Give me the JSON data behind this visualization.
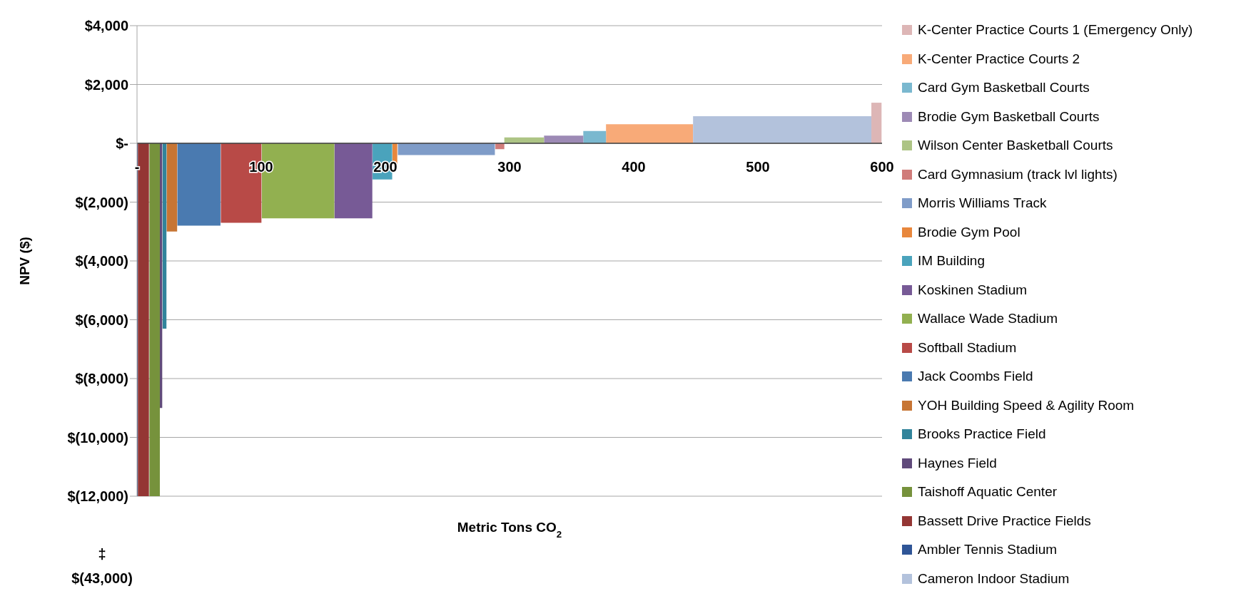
{
  "chart_data": {
    "type": "area",
    "xlabel": "Metric Tons CO$_{2}$",
    "ylabel": "NPV ($)",
    "xlim": [
      0,
      600
    ],
    "ylim": [
      -12000,
      4000
    ],
    "xticks": [
      {
        "value": 0,
        "label": "-"
      },
      100,
      200,
      300,
      400,
      500,
      600
    ],
    "yticks": [
      {
        "value": 4000,
        "label": "$4,000"
      },
      {
        "value": 2000,
        "label": "$2,000"
      },
      {
        "value": 0,
        "label": "$-"
      },
      {
        "value": -2000,
        "label": "$(2,000)"
      },
      {
        "value": -4000,
        "label": "$(4,000)"
      },
      {
        "value": -6000,
        "label": "$(6,000)"
      },
      {
        "value": -8000,
        "label": "$(8,000)"
      },
      {
        "value": -10000,
        "label": "$(10,000)"
      },
      {
        "value": -12000,
        "label": "$(12,000)"
      }
    ],
    "grid": "y",
    "legend": "right",
    "annotations": [
      "‡",
      "$(43,000)"
    ],
    "series": [
      {
        "name": "K-Center Practice Courts 1 (Emergency Only)",
        "color": "#ddb6b6",
        "x": [
          591.4,
          599.6
        ],
        "values": [
          1380,
          1380
        ]
      },
      {
        "name": "K-Center Practice Courts 2",
        "color": "#f8aa78",
        "x": [
          377.7,
          447.8
        ],
        "values": [
          650,
          650
        ]
      },
      {
        "name": "Card Gym Basketball Courts",
        "color": "#7ab8cf",
        "x": [
          359.4,
          377.7
        ],
        "values": [
          420,
          420
        ]
      },
      {
        "name": "Brodie Gym Basketball Courts",
        "color": "#9d8ab5",
        "x": [
          327.8,
          359.4
        ],
        "values": [
          260,
          260
        ]
      },
      {
        "name": "Wilson Center Basketball Courts",
        "color": "#adc485",
        "x": [
          295.8,
          327.8
        ],
        "values": [
          200,
          200
        ]
      },
      {
        "name": "Card Gymnasium (track lvl lights)",
        "color": "#d07c7a",
        "x": [
          288.6,
          295.8
        ],
        "values": [
          -200,
          -200
        ]
      },
      {
        "name": "Morris Williams Track",
        "color": "#7f9cc8",
        "x": [
          210.1,
          288.2
        ],
        "values": [
          -400,
          -400
        ]
      },
      {
        "name": "Brodie Gym Pool",
        "color": "#e8873c",
        "x": [
          205.7,
          209.6
        ],
        "values": [
          -750,
          -750
        ]
      },
      {
        "name": "IM Building",
        "color": "#4aa3bc",
        "x": [
          189.7,
          205.5
        ],
        "values": [
          -1230,
          -1230
        ]
      },
      {
        "name": "Koskinen Stadium",
        "color": "#775a96",
        "x": [
          159,
          189.5
        ],
        "values": [
          -2550,
          -2550
        ]
      },
      {
        "name": "Wallace Wade Stadium",
        "color": "#92b050",
        "x": [
          100.5,
          158.9
        ],
        "values": [
          -2550,
          -2550
        ]
      },
      {
        "name": "Softball Stadium",
        "color": "#b84a47",
        "x": [
          67.5,
          100.2
        ],
        "values": [
          -2700,
          -2700
        ]
      },
      {
        "name": "Jack Coombs Field",
        "color": "#4a7ab0",
        "x": [
          32.5,
          67.2
        ],
        "values": [
          -2800,
          -2800
        ]
      },
      {
        "name": "YOH Building Speed & Agility Room",
        "color": "#c77534",
        "x": [
          23.9,
          32.3
        ],
        "values": [
          -3000,
          -3000
        ]
      },
      {
        "name": "Brooks Practice Field",
        "color": "#31849b",
        "x": [
          20.6,
          23.7
        ],
        "values": [
          -6300,
          -6300
        ]
      },
      {
        "name": "Haynes Field",
        "color": "#604a7b",
        "x": [
          18.4,
          20.3
        ],
        "values": [
          -9000,
          -9000
        ]
      },
      {
        "name": "Taishoff Aquatic Center",
        "color": "#76923c",
        "x": [
          10,
          18.4
        ],
        "values": [
          -12000,
          -12000
        ]
      },
      {
        "name": "Bassett Drive Practice Fields",
        "color": "#943634",
        "x": [
          0.7,
          9.6
        ],
        "values": [
          -12000,
          -12000
        ]
      },
      {
        "name": "Ambler Tennis Stadium",
        "color": "#2f5597",
        "x": [
          0,
          0.6
        ],
        "values": [
          -12000,
          -12000
        ]
      },
      {
        "name": "Cameron Indoor Stadium",
        "color": "#b3c2dc",
        "x": [
          447.8,
          591.4
        ],
        "values": [
          920,
          920
        ]
      }
    ]
  }
}
